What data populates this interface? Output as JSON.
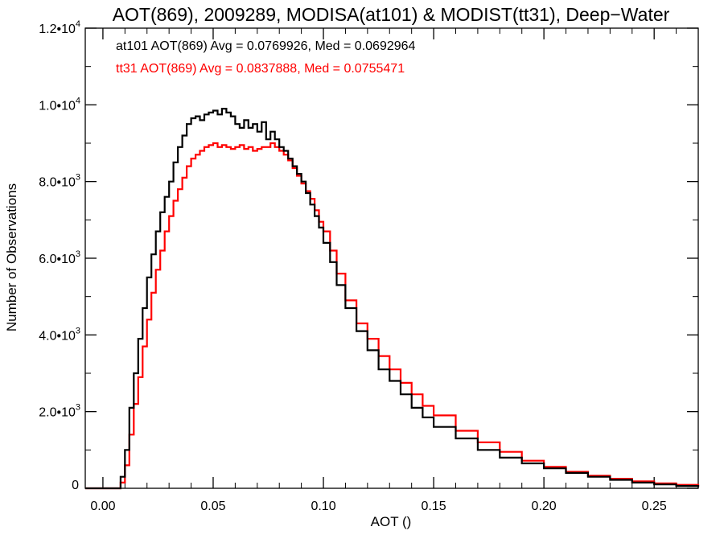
{
  "chart_data": {
    "type": "line",
    "title": "AOT(869), 2009289, MODISA(at101) & MODIST(tt31), Deep−Water",
    "xlabel": "AOT ()",
    "ylabel": "Number of Observations",
    "xlim": [
      -0.008,
      0.27
    ],
    "ylim": [
      0,
      12000
    ],
    "grid": false,
    "legend_position": "top-left",
    "x_ticks": [
      {
        "value": 0.0,
        "label": "0.00"
      },
      {
        "value": 0.05,
        "label": "0.05"
      },
      {
        "value": 0.1,
        "label": "0.10"
      },
      {
        "value": 0.15,
        "label": "0.15"
      },
      {
        "value": 0.2,
        "label": "0.20"
      },
      {
        "value": 0.25,
        "label": "0.25"
      }
    ],
    "y_ticks": [
      {
        "value": 0,
        "mantissa": "0",
        "exp": ""
      },
      {
        "value": 2000,
        "mantissa": "2.0•1",
        "exp": "3"
      },
      {
        "value": 4000,
        "mantissa": "4.0•1",
        "exp": "3"
      },
      {
        "value": 6000,
        "mantissa": "6.0•1",
        "exp": "3"
      },
      {
        "value": 8000,
        "mantissa": "8.0•1",
        "exp": "3"
      },
      {
        "value": 10000,
        "mantissa": "1.0•1",
        "exp": "4"
      },
      {
        "value": 12000,
        "mantissa": "1.2•1",
        "exp": "4"
      }
    ],
    "annotations": [
      {
        "text": "at101 AOT(869) Avg = 0.0769926, Med = 0.0692964",
        "color": "#000000"
      },
      {
        "text": "tt31 AOT(869) Avg = 0.0837888, Med = 0.0755471",
        "color": "#ff0000"
      }
    ],
    "series": [
      {
        "color": "#000000",
        "x": [
          -0.008,
          0.006,
          0.008,
          0.01,
          0.012,
          0.014,
          0.016,
          0.018,
          0.02,
          0.022,
          0.024,
          0.026,
          0.028,
          0.03,
          0.032,
          0.034,
          0.036,
          0.038,
          0.04,
          0.042,
          0.044,
          0.046,
          0.048,
          0.05,
          0.052,
          0.054,
          0.056,
          0.058,
          0.06,
          0.062,
          0.064,
          0.066,
          0.068,
          0.07,
          0.072,
          0.074,
          0.076,
          0.078,
          0.08,
          0.082,
          0.084,
          0.086,
          0.088,
          0.09,
          0.092,
          0.094,
          0.096,
          0.098,
          0.1,
          0.103,
          0.106,
          0.11,
          0.115,
          0.12,
          0.125,
          0.13,
          0.135,
          0.14,
          0.145,
          0.15,
          0.16,
          0.17,
          0.18,
          0.19,
          0.2,
          0.21,
          0.22,
          0.23,
          0.24,
          0.25,
          0.26,
          0.27
        ],
        "y": [
          0,
          0,
          300,
          1000,
          2100,
          3000,
          3900,
          4700,
          5500,
          6100,
          6700,
          7200,
          7600,
          8000,
          8500,
          8900,
          9200,
          9500,
          9650,
          9700,
          9600,
          9750,
          9800,
          9850,
          9750,
          9900,
          9800,
          9700,
          9500,
          9400,
          9600,
          9400,
          9500,
          9300,
          9550,
          9100,
          9300,
          9100,
          8900,
          8800,
          8600,
          8400,
          8200,
          8000,
          7700,
          7400,
          7100,
          6800,
          6400,
          5900,
          5300,
          4700,
          4100,
          3600,
          3100,
          2800,
          2450,
          2100,
          1850,
          1600,
          1300,
          1000,
          800,
          650,
          520,
          400,
          300,
          220,
          150,
          100,
          60,
          30
        ]
      },
      {
        "color": "#ff0000",
        "x": [
          -0.008,
          0.006,
          0.008,
          0.01,
          0.012,
          0.014,
          0.016,
          0.018,
          0.02,
          0.022,
          0.024,
          0.026,
          0.028,
          0.03,
          0.032,
          0.034,
          0.036,
          0.038,
          0.04,
          0.042,
          0.044,
          0.046,
          0.048,
          0.05,
          0.052,
          0.054,
          0.056,
          0.058,
          0.06,
          0.062,
          0.064,
          0.066,
          0.068,
          0.07,
          0.072,
          0.074,
          0.076,
          0.078,
          0.08,
          0.082,
          0.084,
          0.086,
          0.088,
          0.09,
          0.092,
          0.094,
          0.096,
          0.098,
          0.1,
          0.103,
          0.106,
          0.11,
          0.115,
          0.12,
          0.125,
          0.13,
          0.135,
          0.14,
          0.145,
          0.15,
          0.16,
          0.17,
          0.18,
          0.19,
          0.2,
          0.21,
          0.22,
          0.23,
          0.24,
          0.25,
          0.26,
          0.27
        ],
        "y": [
          0,
          0,
          150,
          600,
          1400,
          2200,
          2900,
          3700,
          4400,
          5100,
          5700,
          6200,
          6700,
          7100,
          7500,
          7800,
          8100,
          8400,
          8600,
          8700,
          8800,
          8900,
          8950,
          9000,
          8900,
          8950,
          8900,
          8850,
          8900,
          8950,
          8850,
          8900,
          8800,
          8850,
          8900,
          8900,
          9000,
          8900,
          8800,
          8700,
          8550,
          8350,
          8150,
          7950,
          7750,
          7550,
          7250,
          6950,
          6700,
          6200,
          5600,
          4900,
          4300,
          3900,
          3450,
          3100,
          2750,
          2450,
          2150,
          1900,
          1500,
          1200,
          950,
          720,
          560,
          430,
          330,
          250,
          180,
          130,
          90,
          50
        ]
      }
    ]
  }
}
